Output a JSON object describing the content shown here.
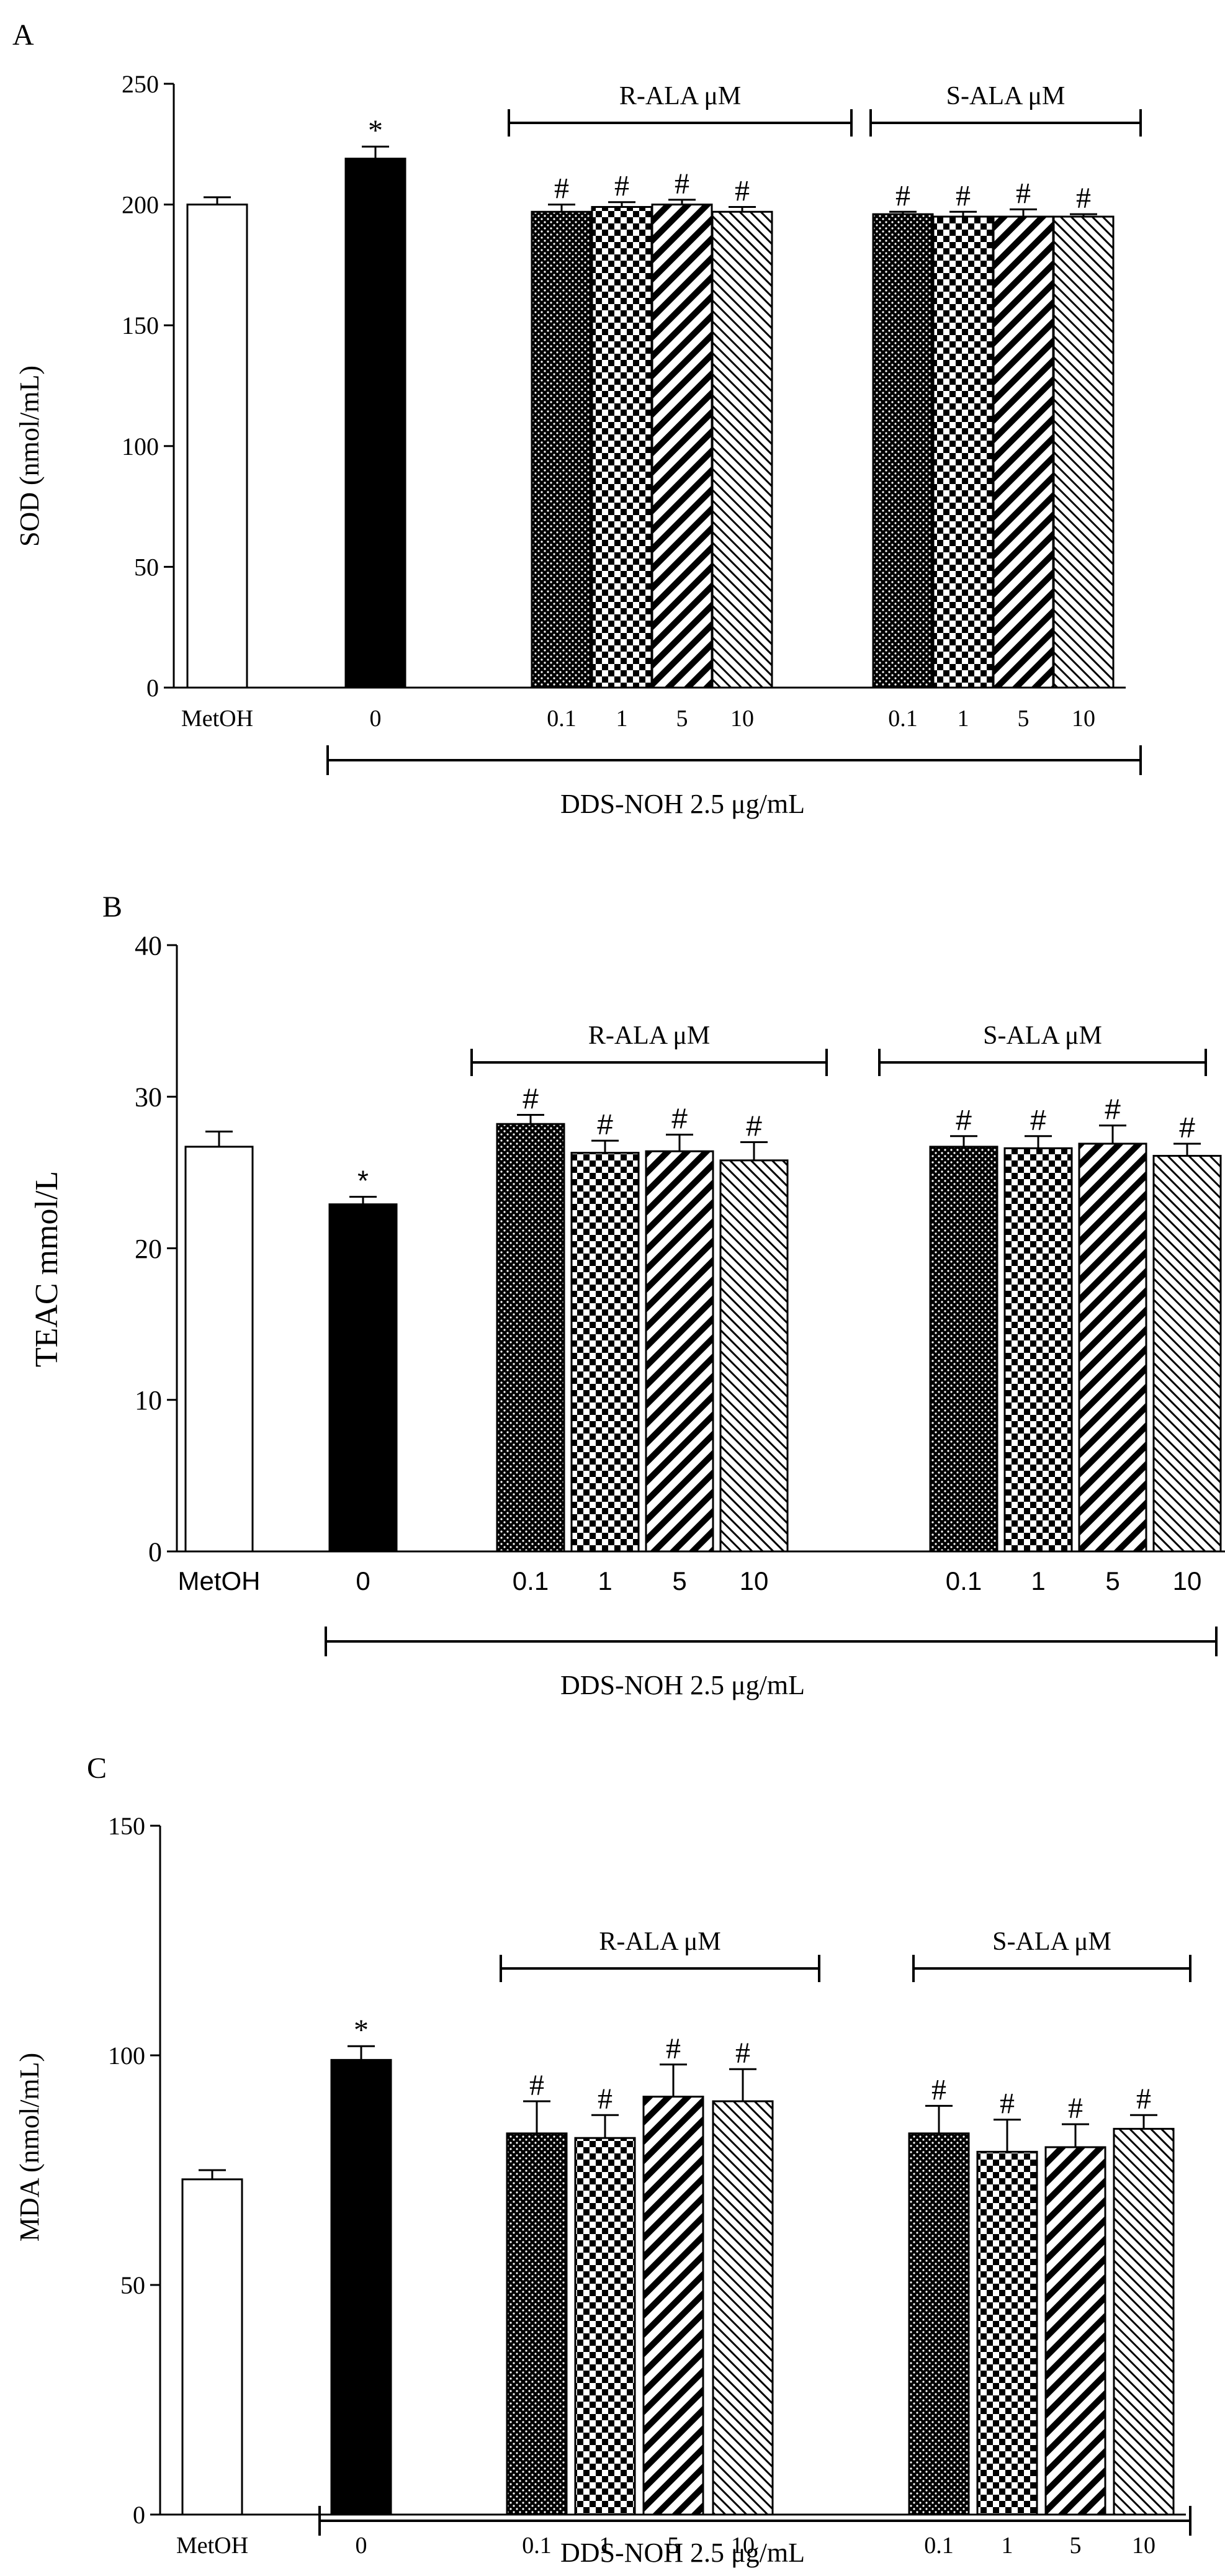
{
  "figure": {
    "panels": [
      "A",
      "B",
      "C"
    ]
  },
  "chart_data": [
    {
      "panel_label": "A",
      "type": "bar",
      "ylabel": "SOD (nmol/mL)",
      "ylim": [
        0,
        250
      ],
      "yticks": [
        "0",
        "50",
        "100",
        "150",
        "200",
        "250"
      ],
      "categories": [
        "MetOH",
        "0",
        "0.1",
        "1",
        "5",
        "10",
        "0.1",
        "1",
        "5",
        "10"
      ],
      "values": [
        200,
        219,
        197,
        199,
        200,
        197,
        196,
        195,
        195,
        195
      ],
      "errors": [
        3,
        5,
        3,
        2,
        2,
        2,
        1,
        2,
        3,
        1
      ],
      "fills": [
        "white",
        "black",
        "dots",
        "checker",
        "diag-wide",
        "diag-thin",
        "dots",
        "checker",
        "diag-wide",
        "diag-thin"
      ],
      "markers": [
        "",
        "*",
        "#",
        "#",
        "#",
        "#",
        "#",
        "#",
        "#",
        "#"
      ],
      "groups": [
        {
          "label": "R-ALA μM",
          "from": 2,
          "to": 5
        },
        {
          "label": "S-ALA μM",
          "from": 6,
          "to": 9
        }
      ],
      "bottom_label": "DDS-NOH 2.5 μg/mL"
    },
    {
      "panel_label": "B",
      "type": "bar",
      "ylabel": "TEAC mmol/L",
      "ylim": [
        0,
        40
      ],
      "yticks": [
        "0",
        "10",
        "20",
        "30",
        "40"
      ],
      "categories": [
        "MetOH",
        "0",
        "0.1",
        "1",
        "5",
        "10",
        "0.1",
        "1",
        "5",
        "10"
      ],
      "values": [
        26.7,
        22.9,
        28.2,
        26.3,
        26.4,
        25.8,
        26.7,
        26.6,
        26.9,
        26.1
      ],
      "errors": [
        1.0,
        0.5,
        0.6,
        0.8,
        1.1,
        1.2,
        0.7,
        0.8,
        1.2,
        0.8
      ],
      "fills": [
        "white",
        "black",
        "dots",
        "checker",
        "diag-wide",
        "diag-thin",
        "dots",
        "checker",
        "diag-wide",
        "diag-thin"
      ],
      "markers": [
        "",
        "*",
        "#",
        "#",
        "#",
        "#",
        "#",
        "#",
        "#",
        "#"
      ],
      "groups": [
        {
          "label": "R-ALA μM",
          "from": 2,
          "to": 5
        },
        {
          "label": "S-ALA μM",
          "from": 6,
          "to": 9
        }
      ],
      "bottom_label": "DDS-NOH 2.5 μg/mL"
    },
    {
      "panel_label": "C",
      "type": "bar",
      "ylabel": "MDA (nmol/mL)",
      "ylim": [
        0,
        150
      ],
      "yticks": [
        "0",
        "50",
        "100",
        "150"
      ],
      "categories": [
        "MetOH",
        "0",
        "0.1",
        "1",
        "5",
        "10",
        "0.1",
        "1",
        "5",
        "10"
      ],
      "values": [
        73,
        99,
        83,
        82,
        91,
        90,
        83,
        79,
        80,
        84
      ],
      "errors": [
        2,
        3,
        7,
        5,
        7,
        7,
        6,
        7,
        5,
        3
      ],
      "fills": [
        "white",
        "black",
        "dots",
        "checker",
        "diag-wide",
        "diag-thin",
        "dots",
        "checker",
        "diag-wide",
        "diag-thin"
      ],
      "markers": [
        "",
        "*",
        "#",
        "#",
        "#",
        "#",
        "#",
        "#",
        "#",
        "#"
      ],
      "groups": [
        {
          "label": "R-ALA μM",
          "from": 2,
          "to": 5
        },
        {
          "label": "S-ALA μM",
          "from": 6,
          "to": 9
        }
      ],
      "bottom_label": "DDS-NOH 2.5 μg/mL"
    }
  ]
}
